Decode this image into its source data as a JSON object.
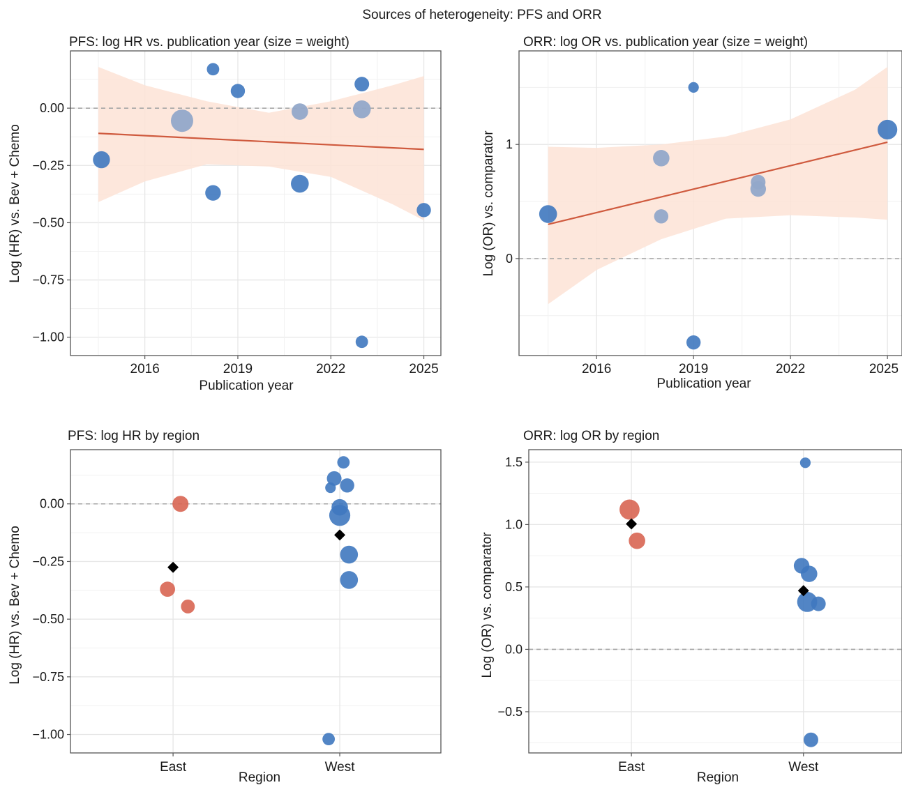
{
  "figure": {
    "title": "Sources of heterogeneity: PFS and ORR"
  },
  "colors": {
    "blue": "#3f78bf",
    "blue_grey": "#92a8c9",
    "red": "#d86552",
    "trend": "#cf5a3e",
    "band": "#fde3d6",
    "grid": "#e6e6e6",
    "dash": "#a6a6a6",
    "frame": "#555555",
    "diamond": "#000000"
  },
  "chart_data": [
    {
      "id": "pfs_year",
      "type": "scatter",
      "title": "PFS: log HR vs. publication year (size = weight)",
      "xlabel": "Publication year",
      "ylabel": "Log (HR) vs. Bev + Chemo",
      "xlim": [
        2013.6,
        2025.55
      ],
      "ylim": [
        -1.08,
        0.25
      ],
      "xticks": [
        2016,
        2019,
        2022,
        2025
      ],
      "yticks": [
        0.0,
        -0.25,
        -0.5,
        -0.75,
        -1.0
      ],
      "ytick_labels": [
        "0.00",
        "−0.25",
        "−0.50",
        "−0.75",
        "−1.00"
      ],
      "reference_line": 0,
      "grid": true,
      "trend": {
        "x": [
          2014.5,
          2025.0
        ],
        "y": [
          -0.11,
          -0.18
        ]
      },
      "band": {
        "x": [
          2014.5,
          2016,
          2018,
          2020,
          2022,
          2024,
          2025.0
        ],
        "lower": [
          -0.41,
          -0.32,
          -0.245,
          -0.255,
          -0.3,
          -0.42,
          -0.49
        ],
        "upper": [
          0.18,
          0.1,
          0.03,
          -0.02,
          0.03,
          0.1,
          0.14
        ]
      },
      "points": [
        {
          "x": 2014.6,
          "y": -0.225,
          "w": 1.1,
          "tone": "blue"
        },
        {
          "x": 2017.2,
          "y": -0.055,
          "w": 1.7,
          "tone": "grey"
        },
        {
          "x": 2018.2,
          "y": 0.17,
          "w": 0.6,
          "tone": "blue"
        },
        {
          "x": 2018.2,
          "y": -0.37,
          "w": 0.95,
          "tone": "blue"
        },
        {
          "x": 2019.0,
          "y": 0.075,
          "w": 0.8,
          "tone": "blue"
        },
        {
          "x": 2021.0,
          "y": -0.015,
          "w": 1.05,
          "tone": "grey"
        },
        {
          "x": 2021.0,
          "y": -0.33,
          "w": 1.2,
          "tone": "blue"
        },
        {
          "x": 2023.0,
          "y": 0.105,
          "w": 0.85,
          "tone": "blue"
        },
        {
          "x": 2023.0,
          "y": -0.005,
          "w": 1.2,
          "tone": "grey"
        },
        {
          "x": 2023.0,
          "y": -1.02,
          "w": 0.6,
          "tone": "blue"
        },
        {
          "x": 2025.0,
          "y": -0.445,
          "w": 0.8,
          "tone": "blue"
        }
      ]
    },
    {
      "id": "orr_year",
      "type": "scatter",
      "title": "ORR: log OR vs. publication year (size = weight)",
      "xlabel": "Publication year",
      "ylabel": "Log (OR) vs. comparator",
      "xlim": [
        2013.6,
        2025.45
      ],
      "ylim": [
        -0.85,
        1.82
      ],
      "xticks": [
        2016,
        2019,
        2022,
        2025
      ],
      "yticks": [
        1,
        0
      ],
      "ytick_labels": [
        "1",
        "0"
      ],
      "reference_line": 0,
      "grid": true,
      "trend": {
        "x": [
          2014.5,
          2025.0
        ],
        "y": [
          0.3,
          1.02
        ]
      },
      "band": {
        "x": [
          2014.5,
          2016,
          2018,
          2020,
          2022,
          2024,
          2025.0
        ],
        "lower": [
          -0.4,
          -0.1,
          0.17,
          0.35,
          0.38,
          0.36,
          0.34
        ],
        "upper": [
          0.98,
          0.97,
          1.0,
          1.07,
          1.22,
          1.48,
          1.68
        ]
      },
      "points": [
        {
          "x": 2014.5,
          "y": 0.39,
          "w": 1.2,
          "tone": "blue"
        },
        {
          "x": 2018.0,
          "y": 0.88,
          "w": 1.05,
          "tone": "grey"
        },
        {
          "x": 2018.0,
          "y": 0.37,
          "w": 0.8,
          "tone": "grey"
        },
        {
          "x": 2019.0,
          "y": 1.5,
          "w": 0.4,
          "tone": "blue"
        },
        {
          "x": 2019.0,
          "y": -0.735,
          "w": 0.8,
          "tone": "blue"
        },
        {
          "x": 2021.0,
          "y": 0.67,
          "w": 0.85,
          "tone": "grey"
        },
        {
          "x": 2021.0,
          "y": 0.61,
          "w": 0.95,
          "tone": "grey"
        },
        {
          "x": 2025.0,
          "y": 1.13,
          "w": 1.4,
          "tone": "blue"
        }
      ]
    },
    {
      "id": "pfs_region",
      "type": "scatter",
      "title": "PFS: log HR by region",
      "xlabel": "Region",
      "ylabel": "Log (HR) vs. Bev + Chemo",
      "categories": [
        "East",
        "West"
      ],
      "ylim": [
        -1.08,
        0.235
      ],
      "yticks": [
        0.0,
        -0.25,
        -0.5,
        -0.75,
        -1.0
      ],
      "ytick_labels": [
        "0.00",
        "−0.25",
        "−0.50",
        "−0.75",
        "−1.00"
      ],
      "reference_line": 0,
      "grid": true,
      "means": [
        {
          "category": "East",
          "y": -0.275
        },
        {
          "category": "West",
          "y": -0.135
        }
      ],
      "points": [
        {
          "category": "East",
          "jitter": 0.04,
          "y": 0.0,
          "w": 1.0,
          "tone": "red"
        },
        {
          "category": "East",
          "jitter": -0.03,
          "y": -0.37,
          "w": 0.9,
          "tone": "red"
        },
        {
          "category": "East",
          "jitter": 0.08,
          "y": -0.445,
          "w": 0.75,
          "tone": "red"
        },
        {
          "category": "West",
          "jitter": 0.02,
          "y": 0.18,
          "w": 0.6,
          "tone": "blue"
        },
        {
          "category": "West",
          "jitter": -0.03,
          "y": 0.11,
          "w": 0.85,
          "tone": "blue"
        },
        {
          "category": "West",
          "jitter": 0.04,
          "y": 0.08,
          "w": 0.8,
          "tone": "blue"
        },
        {
          "category": "West",
          "jitter": -0.05,
          "y": 0.07,
          "w": 0.4,
          "tone": "blue"
        },
        {
          "category": "West",
          "jitter": 0.0,
          "y": -0.015,
          "w": 1.05,
          "tone": "blue"
        },
        {
          "category": "West",
          "jitter": 0.0,
          "y": -0.05,
          "w": 1.55,
          "tone": "blue"
        },
        {
          "category": "West",
          "jitter": 0.05,
          "y": -0.22,
          "w": 1.2,
          "tone": "blue"
        },
        {
          "category": "West",
          "jitter": 0.05,
          "y": -0.33,
          "w": 1.2,
          "tone": "blue"
        },
        {
          "category": "West",
          "jitter": -0.06,
          "y": -1.02,
          "w": 0.6,
          "tone": "blue"
        }
      ]
    },
    {
      "id": "orr_region",
      "type": "scatter",
      "title": "ORR: log OR by region",
      "xlabel": "Region",
      "ylabel": "Log (OR) vs. comparator",
      "categories": [
        "East",
        "West"
      ],
      "ylim": [
        -0.83,
        1.6
      ],
      "yticks": [
        1.5,
        1.0,
        0.5,
        0.0,
        -0.5
      ],
      "ytick_labels": [
        "1.5",
        "1.0",
        "0.5",
        "0.0",
        "−0.5"
      ],
      "reference_line": 0,
      "grid": true,
      "means": [
        {
          "category": "East",
          "y": 1.005
        },
        {
          "category": "West",
          "y": 0.47
        }
      ],
      "points": [
        {
          "category": "East",
          "jitter": -0.01,
          "y": 1.12,
          "w": 1.45,
          "tone": "red"
        },
        {
          "category": "East",
          "jitter": 0.03,
          "y": 0.87,
          "w": 1.05,
          "tone": "red"
        },
        {
          "category": "West",
          "jitter": 0.01,
          "y": 1.495,
          "w": 0.4,
          "tone": "blue"
        },
        {
          "category": "West",
          "jitter": -0.01,
          "y": 0.67,
          "w": 0.95,
          "tone": "blue"
        },
        {
          "category": "West",
          "jitter": 0.03,
          "y": 0.605,
          "w": 1.05,
          "tone": "blue"
        },
        {
          "category": "West",
          "jitter": 0.02,
          "y": 0.38,
          "w": 1.45,
          "tone": "blue"
        },
        {
          "category": "West",
          "jitter": 0.08,
          "y": 0.365,
          "w": 0.85,
          "tone": "blue"
        },
        {
          "category": "West",
          "jitter": 0.04,
          "y": -0.725,
          "w": 0.85,
          "tone": "blue"
        }
      ]
    }
  ]
}
